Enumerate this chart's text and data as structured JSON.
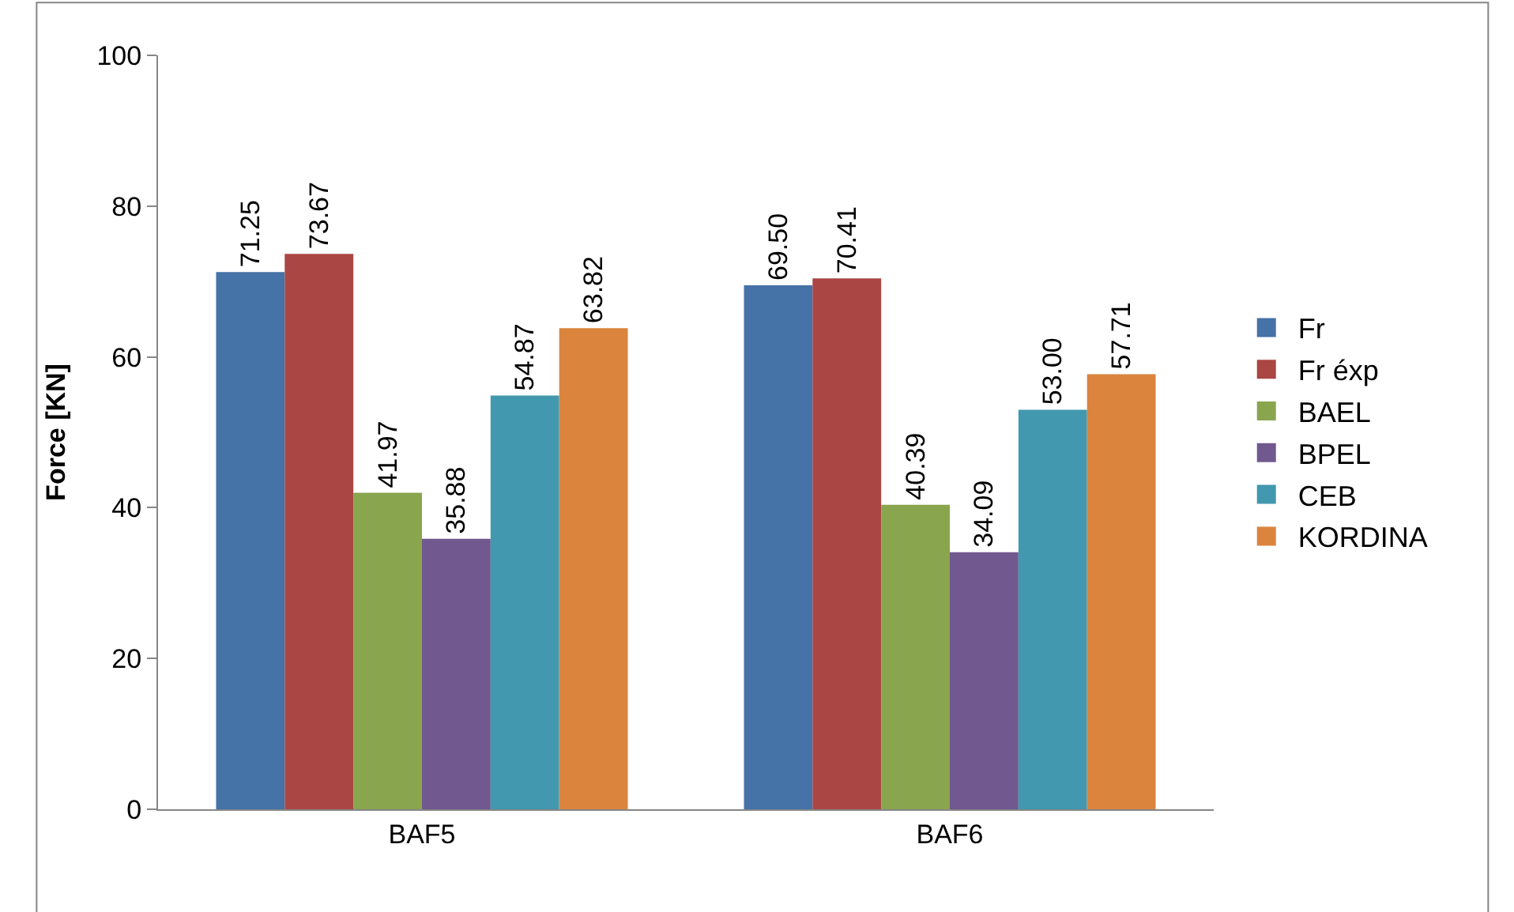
{
  "chart_data": {
    "type": "bar",
    "ylabel": "Force [KN]",
    "categories": [
      "BAF5",
      "BAF6"
    ],
    "series": [
      {
        "name": "Fr",
        "color": "#4572a7",
        "values": [
          71.25,
          69.5
        ],
        "value_labels": [
          "71.25",
          "69.50"
        ]
      },
      {
        "name": "Fr éxp",
        "color": "#aa4643",
        "values": [
          73.67,
          70.41
        ],
        "value_labels": [
          "73.67",
          "70.41"
        ]
      },
      {
        "name": "BAEL",
        "color": "#89a54e",
        "values": [
          41.97,
          40.39
        ],
        "value_labels": [
          "41.97",
          "40.39"
        ]
      },
      {
        "name": "BPEL",
        "color": "#71588f",
        "values": [
          35.88,
          34.09
        ],
        "value_labels": [
          "35.88",
          "34.09"
        ]
      },
      {
        "name": "CEB",
        "color": "#4198af",
        "values": [
          54.87,
          53.0
        ],
        "value_labels": [
          "54.87",
          "53.00"
        ]
      },
      {
        "name": "KORDINA",
        "color": "#db843d",
        "values": [
          63.82,
          57.71
        ],
        "value_labels": [
          "63.82",
          "57.71"
        ]
      }
    ],
    "ylim": [
      0,
      100
    ],
    "yticks": [
      0,
      20,
      40,
      60,
      80,
      100
    ],
    "grid": false,
    "legend": "right"
  }
}
